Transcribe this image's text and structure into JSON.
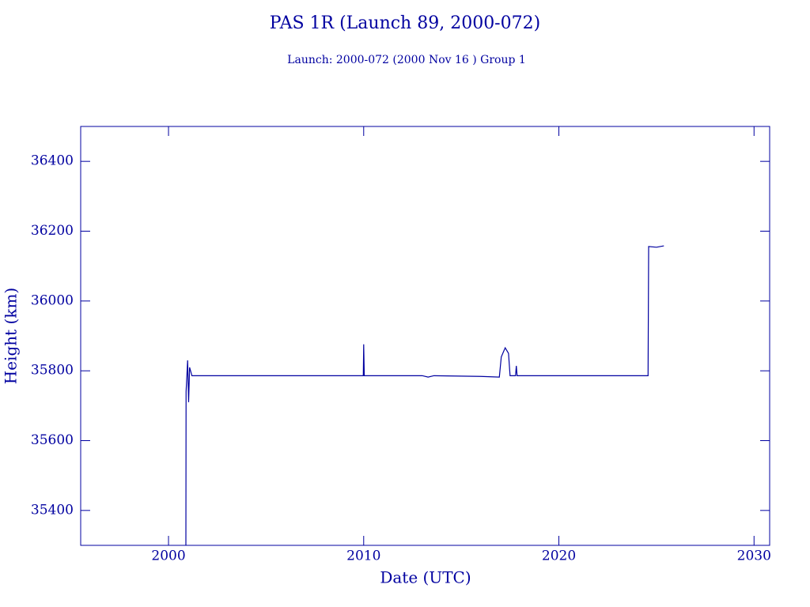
{
  "chart_data": {
    "type": "line",
    "title": "PAS 1R (Launch 89, 2000-072)",
    "subtitle": "Launch: 2000-072  (2000 Nov 16 )  Group 1",
    "x_label": "Date (UTC)",
    "y_label": "Height (km)",
    "series": [
      {
        "name": "PAS 1R",
        "color": "#0000a0",
        "x": [
          2000.89,
          2000.9,
          2000.98,
          2001.03,
          2001.08,
          2001.2,
          2005,
          2009.98,
          2010.0,
          2010.03,
          2013.0,
          2013.3,
          2013.6,
          2016.0,
          2016.95,
          2017.05,
          2017.25,
          2017.42,
          2017.5,
          2017.78,
          2017.82,
          2017.86,
          2024.57,
          2024.6,
          2025.0,
          2025.38
        ],
        "values": [
          35300,
          35740,
          35830,
          35710,
          35810,
          35786,
          35786,
          35786,
          35876,
          35786,
          35786,
          35782,
          35786,
          35784,
          35782,
          35840,
          35866,
          35850,
          35786,
          35786,
          35814,
          35786,
          35786,
          36156,
          36154,
          36158
        ]
      }
    ],
    "xlim": [
      1995.5,
      2030.8
    ],
    "xticks": [
      2000,
      2010,
      2020,
      2030
    ],
    "ylim": [
      35300,
      36500
    ],
    "yticks": [
      35400,
      35600,
      35800,
      36000,
      36200,
      36400
    ],
    "grid": false
  }
}
